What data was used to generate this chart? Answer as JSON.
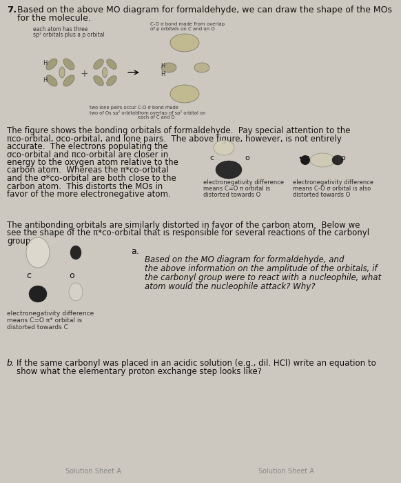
{
  "bg_color": "#cdc8bf",
  "title_num": "7.",
  "footer_left": "Solution Sheet A",
  "footer_right": "Solution Sheet A",
  "p1_line1": "The figure shows the bonding orbitals of formaldehyde.  Pay special attention to the",
  "p1_line2": "πco-orbital, σco-orbital, and lone pairs.  The above figure, however, is not entirely",
  "p1_line3": "accurate.  The electrons populating the",
  "p1_line4": "σco-orbital and πco-orbital are closer in",
  "p1_line5": "energy to the oxygen atom relative to the",
  "p1_line6": "carbon atom.  Whereas the π*co-orbital",
  "p1_line7": "and the σ*co-orbital are both close to the",
  "p1_line8": "carbon atom.  This distorts the MOs in",
  "p1_line9": "favor of the more electronegative atom.",
  "p2_line1": "The antibonding orbitals are similarly distorted in favor of the carbon atom.  Below we",
  "p2_line2": "see the shape of the π*co-orbital that is responsible for several reactions of the carbonyl",
  "p2_line3": "group.",
  "caption_pi_1": "electronegativity difference",
  "caption_pi_2": "means C=O π orbital is",
  "caption_pi_3": "distorted towards O",
  "caption_sig_1": "electronegativity difference",
  "caption_sig_2": "means C-O σ orbital is also",
  "caption_sig_3": "distorted towards O",
  "caption_pistar_1": "electronegativity difference",
  "caption_pistar_2": "means C=O π* orbital is",
  "caption_pistar_3": "distorted towards C",
  "qa_label": "a.",
  "qa_line1": "Based on the MO diagram for formaldehyde, and",
  "qa_line2": "the above information on the amplitude of the orbitals, if",
  "qa_line3": "the carbonyl group were to react with a nucleophile, what",
  "qa_line4": "atom would the nucleophile attack? Why?",
  "qb_label": "b.",
  "qb_line1": "If the same carbonyl was placed in an acidic solution (e.g., dil. HCl) write an equation to",
  "qb_line2": "show what the elementary proton exchange step looks like?",
  "img_left_cap1": "each atom has three",
  "img_left_cap2": "sp² orbitals plus a p orbital",
  "img_top_cap1": "C-O σ bond made from overlap",
  "img_top_cap2": "of p orbitals on C and on O",
  "img_bot_cap1": "two lone pairs occur",
  "img_bot_cap2": "two of Os sp² orbitals",
  "img_bot_cap3": "C-O σ bond made",
  "img_bot_cap4": "from overlap of sp² orbital on",
  "img_bot_cap5": "each of C and O"
}
